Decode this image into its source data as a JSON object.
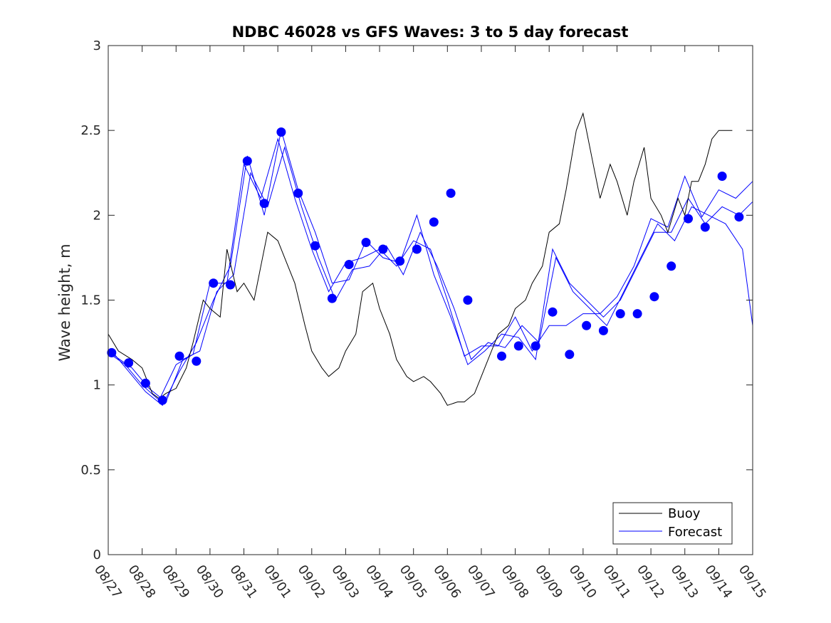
{
  "chart_data": {
    "type": "line",
    "title": "NDBC 46028 vs GFS Waves: 3 to 5 day forecast",
    "xlabel": "",
    "ylabel": "Wave height, m",
    "ylim": [
      0,
      3
    ],
    "yticks": [
      "0",
      "0.5",
      "1",
      "1.5",
      "2",
      "2.5",
      "3"
    ],
    "xlim": [
      0,
      19
    ],
    "xticks": [
      "08/27",
      "08/28",
      "08/29",
      "08/30",
      "08/31",
      "09/01",
      "09/02",
      "09/03",
      "09/04",
      "09/05",
      "09/06",
      "09/07",
      "09/08",
      "09/09",
      "09/10",
      "09/11",
      "09/12",
      "09/13",
      "09/14",
      "09/15"
    ],
    "legend": {
      "position": "bottom-right",
      "entries": [
        "Buoy",
        "Forecast"
      ]
    },
    "colors": {
      "buoy": "#000000",
      "forecast": "#0000ff",
      "marker": "#0000ff"
    },
    "buoy": {
      "x": [
        0,
        0.3,
        0.7,
        1,
        1.3,
        1.5,
        1.7,
        2,
        2.3,
        2.5,
        2.8,
        3,
        3.3,
        3.5,
        3.8,
        4,
        4.3,
        4.5,
        4.7,
        5,
        5.2,
        5.5,
        5.8,
        6,
        6.3,
        6.5,
        6.8,
        7,
        7.3,
        7.5,
        7.8,
        8,
        8.3,
        8.5,
        8.8,
        9,
        9.3,
        9.5,
        9.8,
        10,
        10.3,
        10.5,
        10.8,
        11,
        11.3,
        11.5,
        11.8,
        12,
        12.3,
        12.5,
        12.8,
        13,
        13.3,
        13.5,
        13.8,
        14,
        14.3,
        14.5,
        14.8,
        15,
        15.3,
        15.5,
        15.8,
        16,
        16.3,
        16.5,
        16.8,
        17,
        17.2,
        17.4,
        17.6,
        17.8,
        18,
        18.2,
        18.4
      ],
      "y": [
        1.3,
        1.2,
        1.15,
        1.1,
        0.95,
        0.92,
        0.95,
        0.98,
        1.1,
        1.25,
        1.5,
        1.45,
        1.4,
        1.8,
        1.55,
        1.6,
        1.5,
        1.7,
        1.9,
        1.85,
        1.75,
        1.6,
        1.35,
        1.2,
        1.1,
        1.05,
        1.1,
        1.2,
        1.3,
        1.55,
        1.6,
        1.45,
        1.3,
        1.15,
        1.05,
        1.02,
        1.05,
        1.02,
        0.95,
        0.88,
        0.9,
        0.9,
        0.95,
        1.05,
        1.2,
        1.3,
        1.35,
        1.45,
        1.5,
        1.6,
        1.7,
        1.9,
        1.95,
        2.15,
        2.5,
        2.6,
        2.3,
        2.1,
        2.3,
        2.2,
        2.0,
        2.2,
        2.4,
        2.1,
        2.0,
        1.9,
        2.1,
        2.0,
        2.2,
        2.2,
        2.3,
        2.45,
        2.5,
        2.5,
        2.5
      ]
    },
    "forecast": [
      {
        "x": [
          0,
          0.5,
          1,
          1.5,
          2,
          2.5,
          3,
          3.5,
          4,
          4.5,
          5,
          5.5,
          6,
          6.5,
          7,
          7.5,
          8,
          8.5,
          9,
          9.5,
          10,
          10.5,
          11,
          11.5,
          12,
          12.5,
          13,
          13.5,
          14,
          14.5,
          15,
          15.5,
          16,
          16.5,
          17,
          17.5,
          18,
          18.5,
          19
        ],
        "y": [
          1.19,
          1.12,
          1.0,
          0.91,
          1.12,
          1.18,
          1.6,
          1.6,
          2.3,
          2.1,
          2.45,
          2.1,
          1.8,
          1.55,
          1.72,
          1.75,
          1.8,
          1.7,
          1.85,
          1.8,
          1.5,
          1.17,
          1.23,
          1.23,
          1.4,
          1.2,
          1.35,
          1.35,
          1.42,
          1.42,
          1.52,
          1.7,
          1.98,
          1.93,
          2.23,
          1.99,
          2.15,
          2.1,
          2.2
        ]
      },
      {
        "x": [
          0.2,
          0.7,
          1.2,
          1.7,
          2.2,
          2.7,
          3.2,
          3.7,
          4.2,
          4.7,
          5.2,
          5.7,
          6.2,
          6.7,
          7.2,
          7.7,
          8.2,
          8.7,
          9.2,
          9.7,
          10.2,
          10.7,
          11.2,
          11.7,
          12.2,
          12.7,
          13.2,
          13.7,
          14.2,
          14.7,
          15.2,
          15.7,
          16.2,
          16.7,
          17.2,
          17.7,
          18.2,
          18.7,
          19
        ],
        "y": [
          1.17,
          1.1,
          0.98,
          0.9,
          1.15,
          1.2,
          1.55,
          1.65,
          2.25,
          2.05,
          2.4,
          2.05,
          1.75,
          1.5,
          1.68,
          1.7,
          1.82,
          1.65,
          1.9,
          1.7,
          1.45,
          1.15,
          1.25,
          1.22,
          1.35,
          1.25,
          1.75,
          1.55,
          1.45,
          1.35,
          1.55,
          1.75,
          1.95,
          1.85,
          2.05,
          2.0,
          1.95,
          1.8,
          1.35
        ]
      },
      {
        "x": [
          0.1,
          0.6,
          1.1,
          1.6,
          2.1,
          2.6,
          3.1,
          3.6,
          4.1,
          4.6,
          5.1,
          5.6,
          6.1,
          6.6,
          7.1,
          7.6,
          8.1,
          8.6,
          9.1,
          9.6,
          10.1,
          10.6,
          11.1,
          11.6,
          12.1,
          12.6,
          13.1,
          13.6,
          14.1,
          14.6,
          15.1,
          15.6,
          16.1,
          16.6,
          17.1,
          17.6,
          18.1,
          18.6,
          19
        ],
        "y": [
          1.2,
          1.08,
          0.96,
          0.88,
          1.08,
          1.25,
          1.5,
          1.7,
          2.35,
          2.0,
          2.5,
          2.15,
          1.9,
          1.6,
          1.62,
          1.85,
          1.75,
          1.72,
          2.0,
          1.65,
          1.4,
          1.12,
          1.2,
          1.3,
          1.28,
          1.15,
          1.8,
          1.6,
          1.5,
          1.4,
          1.5,
          1.7,
          1.9,
          1.9,
          2.1,
          1.95,
          2.05,
          2.0,
          2.08
        ]
      }
    ],
    "markers": {
      "x": [
        0.1,
        0.6,
        1.1,
        1.6,
        2.1,
        2.6,
        3.1,
        3.6,
        4.1,
        4.6,
        5.1,
        5.6,
        6.1,
        6.6,
        7.1,
        7.6,
        8.1,
        8.6,
        9.1,
        9.6,
        10.1,
        10.6,
        11.6,
        12.1,
        12.6,
        13.1,
        13.6,
        14.1,
        14.6,
        15.1,
        15.6,
        16.1,
        16.6,
        17.1,
        17.6,
        18.1,
        18.6
      ],
      "y": [
        1.19,
        1.13,
        1.01,
        0.91,
        1.17,
        1.14,
        1.6,
        1.59,
        2.32,
        2.07,
        2.49,
        2.13,
        1.82,
        1.51,
        1.71,
        1.84,
        1.8,
        1.73,
        1.8,
        1.96,
        2.13,
        1.5,
        1.17,
        1.23,
        1.23,
        1.43,
        1.18,
        1.35,
        1.32,
        1.42,
        1.42,
        1.52,
        1.7,
        1.98,
        1.93,
        2.23,
        1.99
      ]
    }
  }
}
